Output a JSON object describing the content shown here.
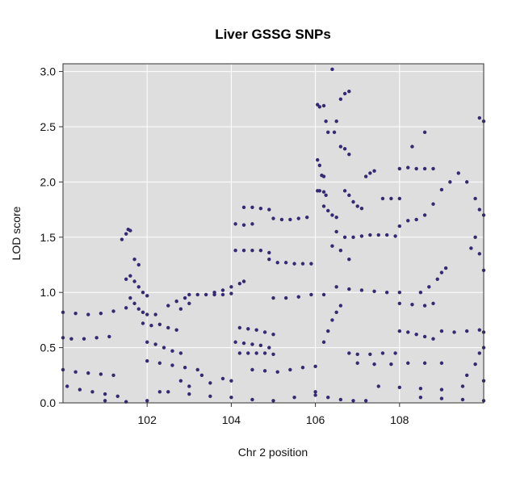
{
  "chart_data": {
    "type": "scatter",
    "title": "Liver GSSG SNPs",
    "xlabel": "Chr 2 position",
    "ylabel": "LOD score",
    "xlim": [
      100.0,
      110.0
    ],
    "ylim": [
      0.0,
      3.07
    ],
    "x_ticks": [
      102,
      104,
      106,
      108
    ],
    "x_tick_labels": [
      "102",
      "104",
      "106",
      "108"
    ],
    "y_ticks": [
      0.0,
      0.5,
      1.0,
      1.5,
      2.0,
      2.5,
      3.0
    ],
    "y_tick_labels": [
      "0.0",
      "0.5",
      "1.0",
      "1.5",
      "2.0",
      "2.5",
      "3.0"
    ],
    "grid": true,
    "background_color": "#dedede",
    "point_color": "#332a73",
    "series": [
      {
        "points": [
          [
            100.0,
            0.82
          ],
          [
            100.3,
            0.81
          ],
          [
            100.6,
            0.8
          ],
          [
            100.9,
            0.81
          ],
          [
            101.2,
            0.83
          ],
          [
            101.5,
            0.86
          ],
          [
            100.0,
            0.59
          ],
          [
            100.2,
            0.58
          ],
          [
            100.5,
            0.58
          ],
          [
            100.8,
            0.59
          ],
          [
            101.1,
            0.6
          ],
          [
            100.0,
            0.3
          ],
          [
            100.3,
            0.28
          ],
          [
            100.6,
            0.27
          ],
          [
            100.9,
            0.26
          ],
          [
            101.2,
            0.25
          ],
          [
            100.1,
            0.15
          ],
          [
            100.4,
            0.12
          ],
          [
            100.7,
            0.1
          ],
          [
            101.0,
            0.08
          ],
          [
            101.3,
            0.06
          ],
          [
            101.4,
            1.48
          ],
          [
            101.5,
            1.53
          ],
          [
            101.55,
            1.57
          ],
          [
            101.6,
            1.56
          ],
          [
            101.7,
            1.3
          ],
          [
            101.8,
            1.25
          ],
          [
            101.5,
            1.12
          ],
          [
            101.6,
            1.15
          ],
          [
            101.7,
            1.1
          ],
          [
            101.8,
            1.05
          ],
          [
            101.9,
            1.0
          ],
          [
            102.0,
            0.97
          ],
          [
            101.6,
            0.95
          ],
          [
            101.7,
            0.9
          ],
          [
            101.8,
            0.85
          ],
          [
            101.9,
            0.82
          ],
          [
            102.0,
            0.8
          ],
          [
            102.2,
            0.8
          ],
          [
            101.9,
            0.72
          ],
          [
            102.1,
            0.7
          ],
          [
            102.3,
            0.71
          ],
          [
            102.5,
            0.68
          ],
          [
            102.7,
            0.66
          ],
          [
            102.0,
            0.55
          ],
          [
            102.2,
            0.53
          ],
          [
            102.4,
            0.5
          ],
          [
            102.6,
            0.47
          ],
          [
            102.8,
            0.45
          ],
          [
            102.0,
            0.38
          ],
          [
            102.3,
            0.36
          ],
          [
            102.6,
            0.34
          ],
          [
            102.9,
            0.32
          ],
          [
            103.2,
            0.3
          ],
          [
            102.5,
            0.88
          ],
          [
            102.7,
            0.92
          ],
          [
            102.9,
            0.95
          ],
          [
            103.0,
            0.9
          ],
          [
            102.8,
            0.85
          ],
          [
            103.0,
            0.98
          ],
          [
            103.2,
            0.98
          ],
          [
            103.4,
            0.98
          ],
          [
            103.6,
            0.98
          ],
          [
            103.8,
            0.98
          ],
          [
            104.0,
            0.99
          ],
          [
            103.6,
            1.0
          ],
          [
            103.8,
            1.02
          ],
          [
            104.0,
            1.05
          ],
          [
            104.2,
            1.08
          ],
          [
            104.3,
            1.1
          ],
          [
            104.1,
            1.38
          ],
          [
            104.3,
            1.38
          ],
          [
            104.5,
            1.38
          ],
          [
            104.7,
            1.38
          ],
          [
            104.9,
            1.36
          ],
          [
            104.1,
            1.62
          ],
          [
            104.3,
            1.61
          ],
          [
            104.5,
            1.62
          ],
          [
            104.3,
            1.77
          ],
          [
            104.5,
            1.77
          ],
          [
            104.7,
            1.76
          ],
          [
            104.9,
            1.75
          ],
          [
            104.9,
            1.3
          ],
          [
            105.1,
            1.27
          ],
          [
            105.3,
            1.27
          ],
          [
            105.5,
            1.26
          ],
          [
            105.7,
            1.26
          ],
          [
            105.9,
            1.26
          ],
          [
            105.0,
            1.67
          ],
          [
            105.2,
            1.66
          ],
          [
            105.4,
            1.66
          ],
          [
            105.6,
            1.67
          ],
          [
            105.8,
            1.68
          ],
          [
            104.2,
            0.68
          ],
          [
            104.4,
            0.67
          ],
          [
            104.6,
            0.66
          ],
          [
            104.8,
            0.64
          ],
          [
            105.0,
            0.62
          ],
          [
            104.1,
            0.55
          ],
          [
            104.3,
            0.54
          ],
          [
            104.5,
            0.53
          ],
          [
            104.7,
            0.52
          ],
          [
            104.9,
            0.5
          ],
          [
            104.2,
            0.45
          ],
          [
            104.4,
            0.45
          ],
          [
            104.6,
            0.45
          ],
          [
            104.8,
            0.45
          ],
          [
            105.0,
            0.44
          ],
          [
            104.5,
            0.3
          ],
          [
            104.8,
            0.29
          ],
          [
            105.1,
            0.28
          ],
          [
            105.4,
            0.3
          ],
          [
            105.7,
            0.32
          ],
          [
            106.0,
            0.33
          ],
          [
            105.0,
            0.95
          ],
          [
            105.3,
            0.95
          ],
          [
            105.6,
            0.96
          ],
          [
            105.9,
            0.98
          ],
          [
            106.2,
            0.98
          ],
          [
            106.05,
            2.7
          ],
          [
            106.1,
            2.68
          ],
          [
            106.2,
            2.69
          ],
          [
            106.25,
            2.55
          ],
          [
            106.3,
            2.45
          ],
          [
            106.05,
            2.2
          ],
          [
            106.1,
            2.15
          ],
          [
            106.15,
            2.06
          ],
          [
            106.2,
            2.05
          ],
          [
            106.05,
            1.92
          ],
          [
            106.1,
            1.92
          ],
          [
            106.2,
            1.91
          ],
          [
            106.25,
            1.88
          ],
          [
            106.2,
            1.78
          ],
          [
            106.3,
            1.74
          ],
          [
            106.4,
            1.7
          ],
          [
            106.5,
            1.68
          ],
          [
            106.45,
            2.45
          ],
          [
            106.5,
            2.55
          ],
          [
            106.6,
            2.75
          ],
          [
            106.7,
            2.8
          ],
          [
            106.8,
            2.82
          ],
          [
            106.4,
            3.02
          ],
          [
            106.6,
            2.32
          ],
          [
            106.7,
            2.3
          ],
          [
            106.8,
            2.25
          ],
          [
            106.7,
            1.92
          ],
          [
            106.8,
            1.88
          ],
          [
            106.9,
            1.82
          ],
          [
            107.0,
            1.78
          ],
          [
            107.1,
            1.76
          ],
          [
            106.5,
            1.55
          ],
          [
            106.7,
            1.5
          ],
          [
            106.9,
            1.5
          ],
          [
            107.1,
            1.51
          ],
          [
            107.3,
            1.52
          ],
          [
            107.5,
            1.52
          ],
          [
            107.7,
            1.52
          ],
          [
            107.9,
            1.51
          ],
          [
            106.4,
            1.42
          ],
          [
            106.6,
            1.38
          ],
          [
            106.8,
            1.3
          ],
          [
            107.2,
            2.05
          ],
          [
            107.3,
            2.08
          ],
          [
            107.4,
            2.1
          ],
          [
            107.6,
            1.85
          ],
          [
            107.8,
            1.85
          ],
          [
            108.0,
            1.85
          ],
          [
            108.0,
            2.12
          ],
          [
            108.2,
            2.13
          ],
          [
            108.4,
            2.12
          ],
          [
            108.6,
            2.12
          ],
          [
            108.8,
            2.12
          ],
          [
            108.3,
            2.32
          ],
          [
            108.6,
            2.45
          ],
          [
            108.0,
            1.6
          ],
          [
            108.2,
            1.65
          ],
          [
            108.4,
            1.66
          ],
          [
            108.6,
            1.7
          ],
          [
            108.8,
            1.8
          ],
          [
            109.0,
            1.93
          ],
          [
            109.2,
            2.0
          ],
          [
            109.4,
            2.08
          ],
          [
            109.6,
            2.0
          ],
          [
            109.8,
            1.85
          ],
          [
            109.9,
            1.75
          ],
          [
            110.0,
            1.7
          ],
          [
            109.9,
            2.58
          ],
          [
            110.0,
            2.55
          ],
          [
            106.5,
            1.05
          ],
          [
            106.8,
            1.03
          ],
          [
            107.1,
            1.02
          ],
          [
            107.4,
            1.01
          ],
          [
            107.7,
            1.0
          ],
          [
            108.0,
            1.0
          ],
          [
            108.0,
            0.9
          ],
          [
            108.3,
            0.89
          ],
          [
            108.6,
            0.88
          ],
          [
            108.8,
            0.9
          ],
          [
            108.5,
            1.0
          ],
          [
            108.7,
            1.05
          ],
          [
            108.9,
            1.12
          ],
          [
            109.0,
            1.18
          ],
          [
            109.1,
            1.22
          ],
          [
            108.0,
            0.65
          ],
          [
            108.2,
            0.64
          ],
          [
            108.4,
            0.62
          ],
          [
            108.6,
            0.6
          ],
          [
            108.8,
            0.58
          ],
          [
            109.0,
            0.65
          ],
          [
            109.3,
            0.64
          ],
          [
            109.6,
            0.65
          ],
          [
            109.9,
            0.66
          ],
          [
            110.0,
            0.64
          ],
          [
            106.8,
            0.45
          ],
          [
            107.0,
            0.44
          ],
          [
            107.3,
            0.44
          ],
          [
            107.6,
            0.45
          ],
          [
            107.9,
            0.45
          ],
          [
            107.0,
            0.36
          ],
          [
            107.4,
            0.35
          ],
          [
            107.8,
            0.35
          ],
          [
            108.2,
            0.36
          ],
          [
            108.6,
            0.36
          ],
          [
            109.0,
            0.36
          ],
          [
            107.5,
            0.15
          ],
          [
            108.0,
            0.14
          ],
          [
            108.5,
            0.13
          ],
          [
            109.0,
            0.12
          ],
          [
            109.5,
            0.15
          ],
          [
            110.0,
            0.2
          ],
          [
            106.2,
            0.55
          ],
          [
            106.3,
            0.65
          ],
          [
            106.4,
            0.75
          ],
          [
            106.5,
            0.82
          ],
          [
            106.6,
            0.88
          ],
          [
            106.0,
            0.1
          ],
          [
            106.3,
            0.05
          ],
          [
            106.6,
            0.03
          ],
          [
            106.9,
            0.02
          ],
          [
            107.2,
            0.02
          ],
          [
            102.5,
            0.1
          ],
          [
            103.0,
            0.08
          ],
          [
            103.5,
            0.06
          ],
          [
            104.0,
            0.05
          ],
          [
            104.5,
            0.03
          ],
          [
            105.0,
            0.02
          ],
          [
            105.5,
            0.05
          ],
          [
            106.0,
            0.07
          ],
          [
            108.5,
            0.05
          ],
          [
            109.0,
            0.04
          ],
          [
            109.5,
            0.03
          ],
          [
            110.0,
            0.02
          ],
          [
            101.0,
            0.02
          ],
          [
            101.5,
            0.01
          ],
          [
            102.0,
            0.02
          ],
          [
            103.0,
            0.15
          ],
          [
            103.5,
            0.18
          ],
          [
            104.0,
            0.2
          ],
          [
            102.3,
            0.1
          ],
          [
            102.8,
            0.2
          ],
          [
            103.3,
            0.25
          ],
          [
            103.8,
            0.22
          ],
          [
            109.6,
            0.25
          ],
          [
            109.8,
            0.35
          ],
          [
            109.9,
            0.45
          ],
          [
            110.0,
            0.5
          ],
          [
            109.7,
            1.4
          ],
          [
            109.8,
            1.5
          ],
          [
            109.9,
            1.35
          ],
          [
            110.0,
            1.2
          ]
        ]
      }
    ]
  }
}
